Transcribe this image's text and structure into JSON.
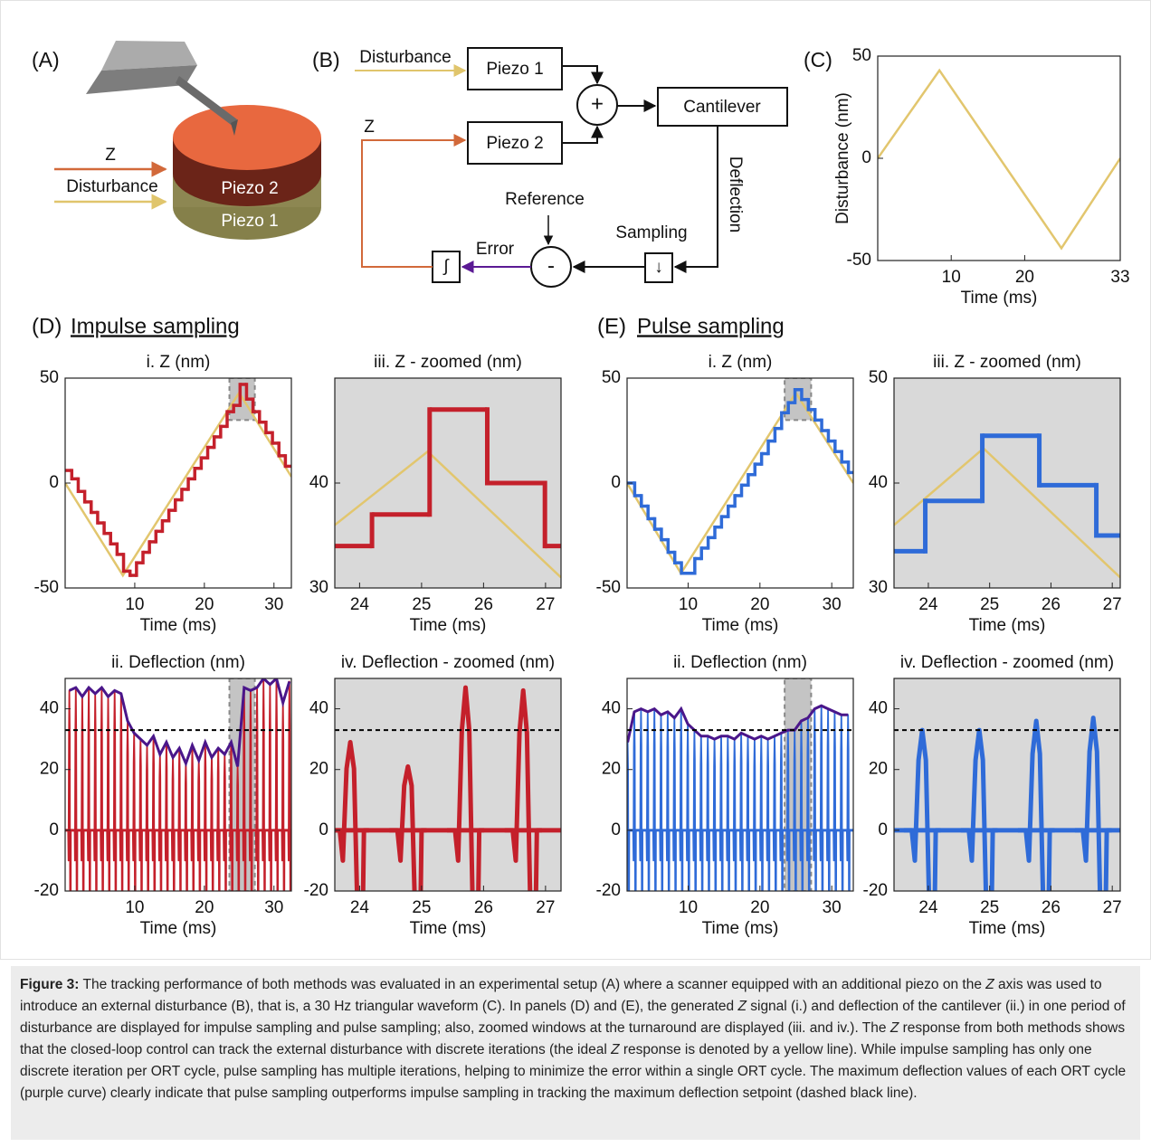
{
  "panel_a": {
    "label": "(A)",
    "z": "Z",
    "disturbance": "Disturbance",
    "piezo2": "Piezo 2",
    "piezo1": "Piezo 1"
  },
  "panel_b": {
    "label": "(B)",
    "disturbance": "Disturbance",
    "piezo1": "Piezo 1",
    "piezo2": "Piezo 2",
    "sum": "+",
    "cantilever": "Cantilever",
    "deflection": "Deflection",
    "z": "Z",
    "reference": "Reference",
    "sampling": "Sampling",
    "sampler": "↓",
    "error": "Error",
    "minus": "-",
    "integrator": "∫"
  },
  "panel_d": {
    "label": "(D)",
    "title": "Impulse sampling"
  },
  "panel_e": {
    "label": "(E)",
    "title": "Pulse sampling"
  },
  "chart_data": [
    {
      "type": "line",
      "label": "(C)",
      "xlabel": "Time (ms)",
      "ylabel": "Disturbance (nm)",
      "xlim": [
        0,
        33
      ],
      "ylim": [
        -50,
        50
      ],
      "xticks": [
        10,
        20,
        33
      ],
      "yticks": [
        -50,
        0,
        50
      ],
      "series": [
        {
          "color": "#e2c66e",
          "x": [
            0,
            8.4,
            25,
            33
          ],
          "values": [
            0,
            43,
            -44,
            0
          ]
        }
      ]
    },
    {
      "type": "line",
      "title": "i. Z (nm)",
      "xlabel": "Time (ms)",
      "xlim": [
        0,
        32.5
      ],
      "ylim": [
        -50,
        50
      ],
      "xticks": [
        10,
        20,
        30
      ],
      "yticks": [
        -50,
        0,
        50
      ],
      "zoom_window": {
        "x": [
          23.6,
          27.25
        ],
        "y": [
          30,
          50
        ]
      },
      "series": [
        {
          "color": "#e2c66e",
          "x": [
            0,
            8.3,
            25,
            32.5
          ],
          "values": [
            0,
            -44,
            43,
            3
          ]
        },
        {
          "color": "#c4202b",
          "step": true,
          "x": [
            0,
            0.95,
            1.88,
            2.81,
            3.74,
            4.67,
            5.6,
            6.53,
            7.46,
            8.39,
            9.32,
            10.25,
            11.18,
            12.11,
            13.04,
            13.97,
            14.9,
            15.83,
            16.76,
            17.69,
            18.62,
            19.55,
            20.48,
            21.41,
            22.34,
            23.27,
            24.2,
            25.13,
            26.06,
            26.99,
            27.92,
            28.85,
            29.78,
            30.71,
            31.64
          ],
          "values": [
            6,
            2,
            -4,
            -9,
            -14,
            -19,
            -24,
            -29,
            -34,
            -42,
            -44,
            -38,
            -33,
            -28,
            -23,
            -18,
            -13,
            -8,
            -3,
            2,
            7,
            12,
            17,
            22,
            27,
            34,
            37,
            47,
            40,
            34,
            29,
            24,
            19,
            13,
            8
          ]
        }
      ]
    },
    {
      "type": "line",
      "title": "iii. Z - zoomed (nm)",
      "xlabel": "Time (ms)",
      "xlim": [
        23.6,
        27.25
      ],
      "ylim": [
        30,
        50
      ],
      "xticks": [
        24,
        25,
        26,
        27
      ],
      "yticks": [
        30,
        40
      ],
      "background": "#d9d9d9",
      "series": [
        {
          "color": "#e2c66e",
          "x": [
            23.6,
            25.1,
            27.25
          ],
          "values": [
            36,
            43,
            31
          ]
        },
        {
          "color": "#c4202b",
          "step": true,
          "x": [
            23.6,
            24.2,
            25.13,
            26.06,
            26.99
          ],
          "values": [
            34,
            37,
            47,
            40,
            34
          ]
        }
      ]
    },
    {
      "type": "line",
      "title": "ii. Deflection (nm)",
      "xlabel": "Time (ms)",
      "xlim": [
        0,
        32.5
      ],
      "ylim": [
        -20,
        50
      ],
      "xticks": [
        10,
        20,
        30
      ],
      "yticks": [
        -20,
        0,
        20,
        40
      ],
      "zoom_window": {
        "x": [
          23.6,
          27.25
        ]
      },
      "setpoint": 33,
      "series": [
        {
          "color": "#c4202b",
          "envelope_color": "#4a168a",
          "spike": true,
          "x": [
            0.6,
            1.53,
            2.46,
            3.39,
            4.32,
            5.25,
            6.18,
            7.11,
            8.04,
            8.97,
            9.9,
            10.83,
            11.76,
            12.69,
            13.62,
            14.55,
            15.48,
            16.41,
            17.34,
            18.27,
            19.2,
            20.13,
            21.06,
            21.99,
            22.92,
            23.85,
            24.78,
            25.71,
            26.64,
            27.57,
            28.5,
            29.43,
            30.36,
            31.29,
            32.22
          ],
          "values": [
            46,
            47,
            44,
            47,
            45,
            47,
            44,
            46,
            45,
            36,
            32,
            30,
            28,
            31,
            25,
            29,
            24,
            27,
            22,
            28,
            23,
            29,
            24,
            27,
            25,
            29,
            21,
            47,
            46,
            47,
            50,
            48,
            50,
            42,
            49
          ]
        }
      ]
    },
    {
      "type": "line",
      "title": "iv. Deflection - zoomed (nm)",
      "xlabel": "Time (ms)",
      "xlim": [
        23.6,
        27.25
      ],
      "ylim": [
        -20,
        50
      ],
      "xticks": [
        24,
        25,
        26,
        27
      ],
      "yticks": [
        -20,
        0,
        20,
        40
      ],
      "background": "#d9d9d9",
      "setpoint": 33,
      "series": [
        {
          "color": "#c4202b",
          "spike": true,
          "x": [
            23.85,
            24.78,
            25.71,
            26.64
          ],
          "values": [
            29,
            21,
            47,
            46
          ]
        }
      ]
    },
    {
      "type": "line",
      "title": "i. Z (nm)",
      "xlabel": "Time (ms)",
      "xlim": [
        1.5,
        33
      ],
      "ylim": [
        -50,
        50
      ],
      "xticks": [
        10,
        20,
        30
      ],
      "yticks": [
        -50,
        0,
        50
      ],
      "zoom_window": {
        "x": [
          23.44,
          27.13
        ],
        "y": [
          30,
          50
        ]
      },
      "series": [
        {
          "color": "#e2c66e",
          "x": [
            1.5,
            9,
            25,
            33
          ],
          "values": [
            0,
            -43,
            43,
            0
          ]
        },
        {
          "color": "#2f6bd8",
          "step": true,
          "x": [
            1.5,
            2.56,
            3.49,
            4.42,
            5.35,
            6.28,
            7.21,
            8.14,
            9.07,
            10.0,
            10.93,
            11.86,
            12.79,
            13.72,
            14.65,
            15.58,
            16.51,
            17.44,
            18.37,
            19.3,
            20.23,
            21.16,
            22.09,
            23.02,
            23.95,
            24.88,
            25.81,
            26.74,
            27.67,
            28.6,
            29.53,
            30.46,
            31.39,
            32.32
          ],
          "values": [
            0,
            -6,
            -11,
            -17,
            -22,
            -27,
            -33,
            -38,
            -43,
            -43,
            -36,
            -31,
            -26,
            -21,
            -16,
            -11,
            -6,
            -1,
            4,
            9,
            14,
            20,
            26,
            33.5,
            38.3,
            44.5,
            39.8,
            35,
            30,
            25,
            20,
            15,
            10,
            5
          ]
        }
      ]
    },
    {
      "type": "line",
      "title": "iii. Z - zoomed (nm)",
      "xlabel": "Time (ms)",
      "xlim": [
        23.44,
        27.13
      ],
      "ylim": [
        30,
        50
      ],
      "xticks": [
        24,
        25,
        26,
        27
      ],
      "yticks": [
        30,
        40,
        50
      ],
      "background": "#d9d9d9",
      "series": [
        {
          "color": "#e2c66e",
          "x": [
            23.44,
            24.9,
            27.13
          ],
          "values": [
            36,
            43.3,
            31
          ]
        },
        {
          "color": "#2f6bd8",
          "step": true,
          "x": [
            23.44,
            23.95,
            24.88,
            25.81,
            26.74
          ],
          "values": [
            33.5,
            38.3,
            44.5,
            39.8,
            35
          ]
        }
      ]
    },
    {
      "type": "line",
      "title": "ii. Deflection (nm)",
      "xlabel": "Time (ms)",
      "xlim": [
        1.5,
        33
      ],
      "ylim": [
        -20,
        50
      ],
      "xticks": [
        10,
        20,
        30
      ],
      "yticks": [
        -20,
        0,
        20,
        40
      ],
      "zoom_window": {
        "x": [
          23.44,
          27.13
        ]
      },
      "setpoint": 33,
      "series": [
        {
          "color": "#2f6bd8",
          "envelope_color": "#4a168a",
          "spike": true,
          "x": [
            1.58,
            2.51,
            3.44,
            4.37,
            5.3,
            6.23,
            7.16,
            8.09,
            9.02,
            9.95,
            10.88,
            11.81,
            12.74,
            13.67,
            14.6,
            15.53,
            16.46,
            17.39,
            18.32,
            19.25,
            20.18,
            21.11,
            22.04,
            22.97,
            23.9,
            24.83,
            25.76,
            26.69,
            27.62,
            28.55,
            29.48,
            30.41,
            31.34,
            32.27
          ],
          "values": [
            29,
            39,
            40,
            39,
            40,
            38,
            39,
            37,
            40,
            35,
            33,
            31,
            31,
            30,
            31,
            31,
            30,
            32,
            31,
            30,
            31,
            30,
            31,
            32,
            33,
            33,
            36,
            37,
            40,
            41,
            40,
            39,
            38,
            38
          ]
        }
      ]
    },
    {
      "type": "line",
      "title": "iv. Deflection - zoomed (nm)",
      "xlabel": "Time (ms)",
      "xlim": [
        23.44,
        27.13
      ],
      "ylim": [
        -20,
        50
      ],
      "xticks": [
        24,
        25,
        26,
        27
      ],
      "yticks": [
        -20,
        0,
        20,
        40
      ],
      "background": "#d9d9d9",
      "setpoint": 33,
      "series": [
        {
          "color": "#2f6bd8",
          "spike": true,
          "x": [
            23.9,
            24.83,
            25.76,
            26.69
          ],
          "values": [
            33,
            33,
            36,
            37
          ]
        }
      ]
    }
  ],
  "caption": [
    {
      "text": "Figure 3:",
      "bold": true
    },
    {
      "text": " The tracking performance of both methods was evaluated in an experimental setup (A) where a scanner equipped with an additional piezo on the "
    },
    {
      "text": "Z",
      "italic": true
    },
    {
      "text": " axis was used to introduce an external disturbance (B), that is, a 30 Hz triangular waveform (C). In panels (D) and (E), the generated "
    },
    {
      "text": "Z",
      "italic": true
    },
    {
      "text": " signal (i.) and deflection of the cantilever (ii.) in one period of disturbance are displayed for impulse sampling and pulse sampling; also, zoomed windows at the turnaround are displayed (iii. and iv.). The "
    },
    {
      "text": "Z",
      "italic": true
    },
    {
      "text": " response from both methods shows that the closed-loop control can track the external disturbance with discrete iterations (the ideal "
    },
    {
      "text": "Z",
      "italic": true
    },
    {
      "text": " response is denoted by a yellow line). While impulse sampling has only one discrete iteration per ORT cycle, pulse sampling has multiple iterations, helping to minimize the error within a single ORT cycle. The maximum deflection values of each ORT cycle (purple curve) clearly indicate that pulse sampling outperforms impulse sampling in tracking the maximum deflection setpoint (dashed black line)."
    }
  ]
}
